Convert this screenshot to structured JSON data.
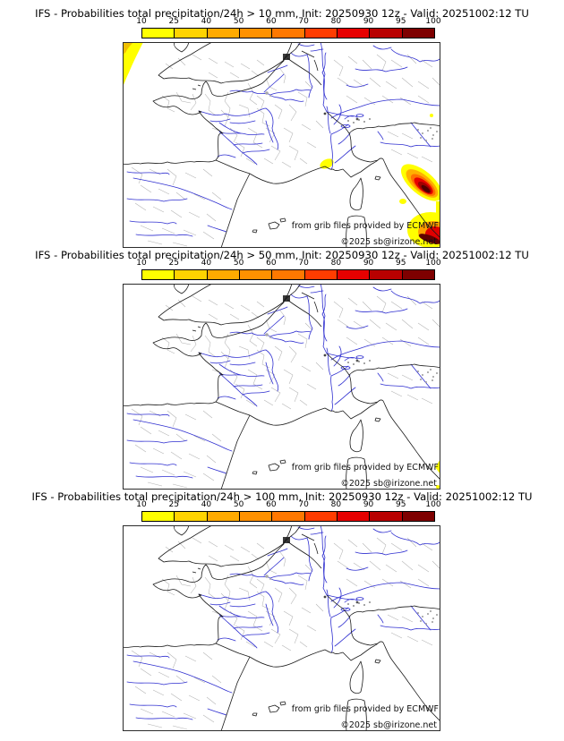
{
  "panels": [
    {
      "title": "IFS - Probabilities total precipitation/24h > 10 mm, Init: 20250930 12z - Valid: 20251002:12 TU",
      "threshold": "10 mm",
      "overlay": "ov10"
    },
    {
      "title": "IFS - Probabilities total precipitation/24h > 50 mm, Init: 20250930 12z - Valid: 20251002:12 TU",
      "threshold": "50 mm",
      "overlay": "ov50"
    },
    {
      "title": "IFS - Probabilities total precipitation/24h > 100 mm, Init: 20250930 12z - Valid: 20251002:12 TU",
      "threshold": "100 mm",
      "overlay": "none"
    }
  ],
  "colorbar": {
    "labels": [
      "10",
      "25",
      "40",
      "50",
      "60",
      "70",
      "80",
      "90",
      "95",
      "100"
    ],
    "colors": [
      "#ffff00",
      "#ffd300",
      "#ffaa00",
      "#ff9100",
      "#ff7800",
      "#ff3c00",
      "#e60000",
      "#b80000",
      "#7e0000"
    ]
  },
  "credits": {
    "line1": "from grib files provided by ECMWF",
    "line2": "©2025 sb@irizone.net"
  },
  "map_colors": {
    "river": "#2f2fd0",
    "admin_border": "#b3b3b3",
    "coast": "#1a1a1a",
    "prob_low": "#ffff00",
    "prob_mid": "#ffa000",
    "prob_high": "#e00000",
    "prob_extreme": "#5a0000"
  }
}
